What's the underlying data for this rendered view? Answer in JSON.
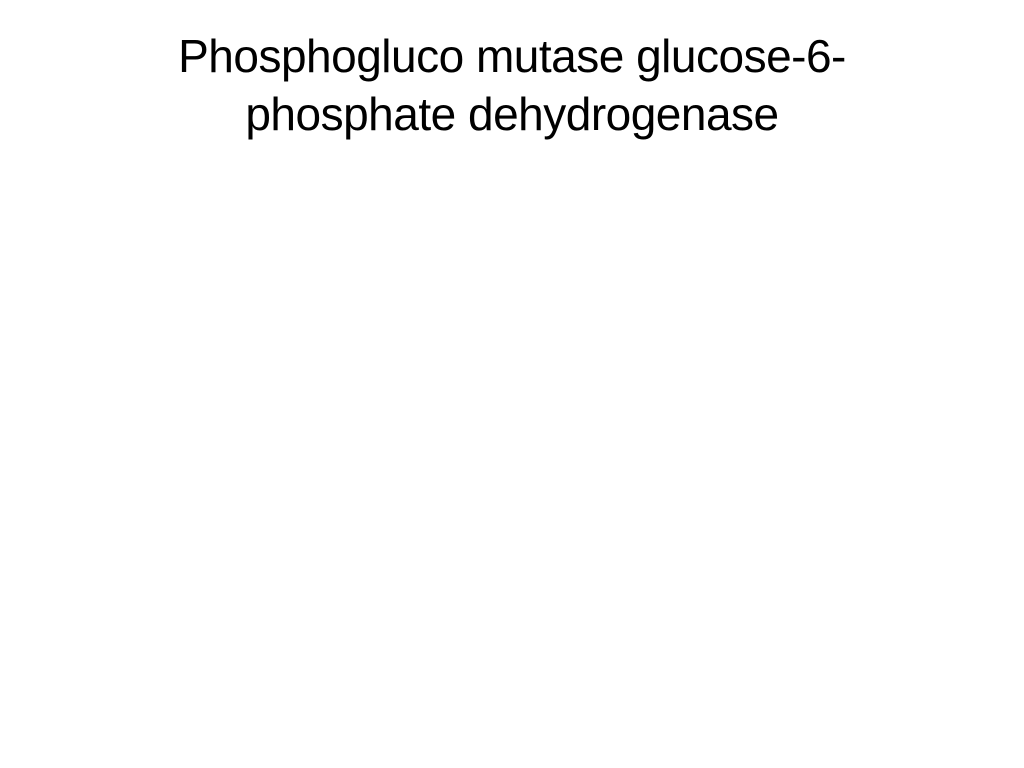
{
  "slide": {
    "title_line1": "Phosphogluco mutase    glucose-6-",
    "title_line2": "phosphate dehydrogenase",
    "background_color": "#ffffff",
    "text_color": "#000000",
    "font_family": "Verdana, Geneva, sans-serif",
    "title_fontsize": 46,
    "title_fontweight": 400,
    "alignment": "center"
  }
}
